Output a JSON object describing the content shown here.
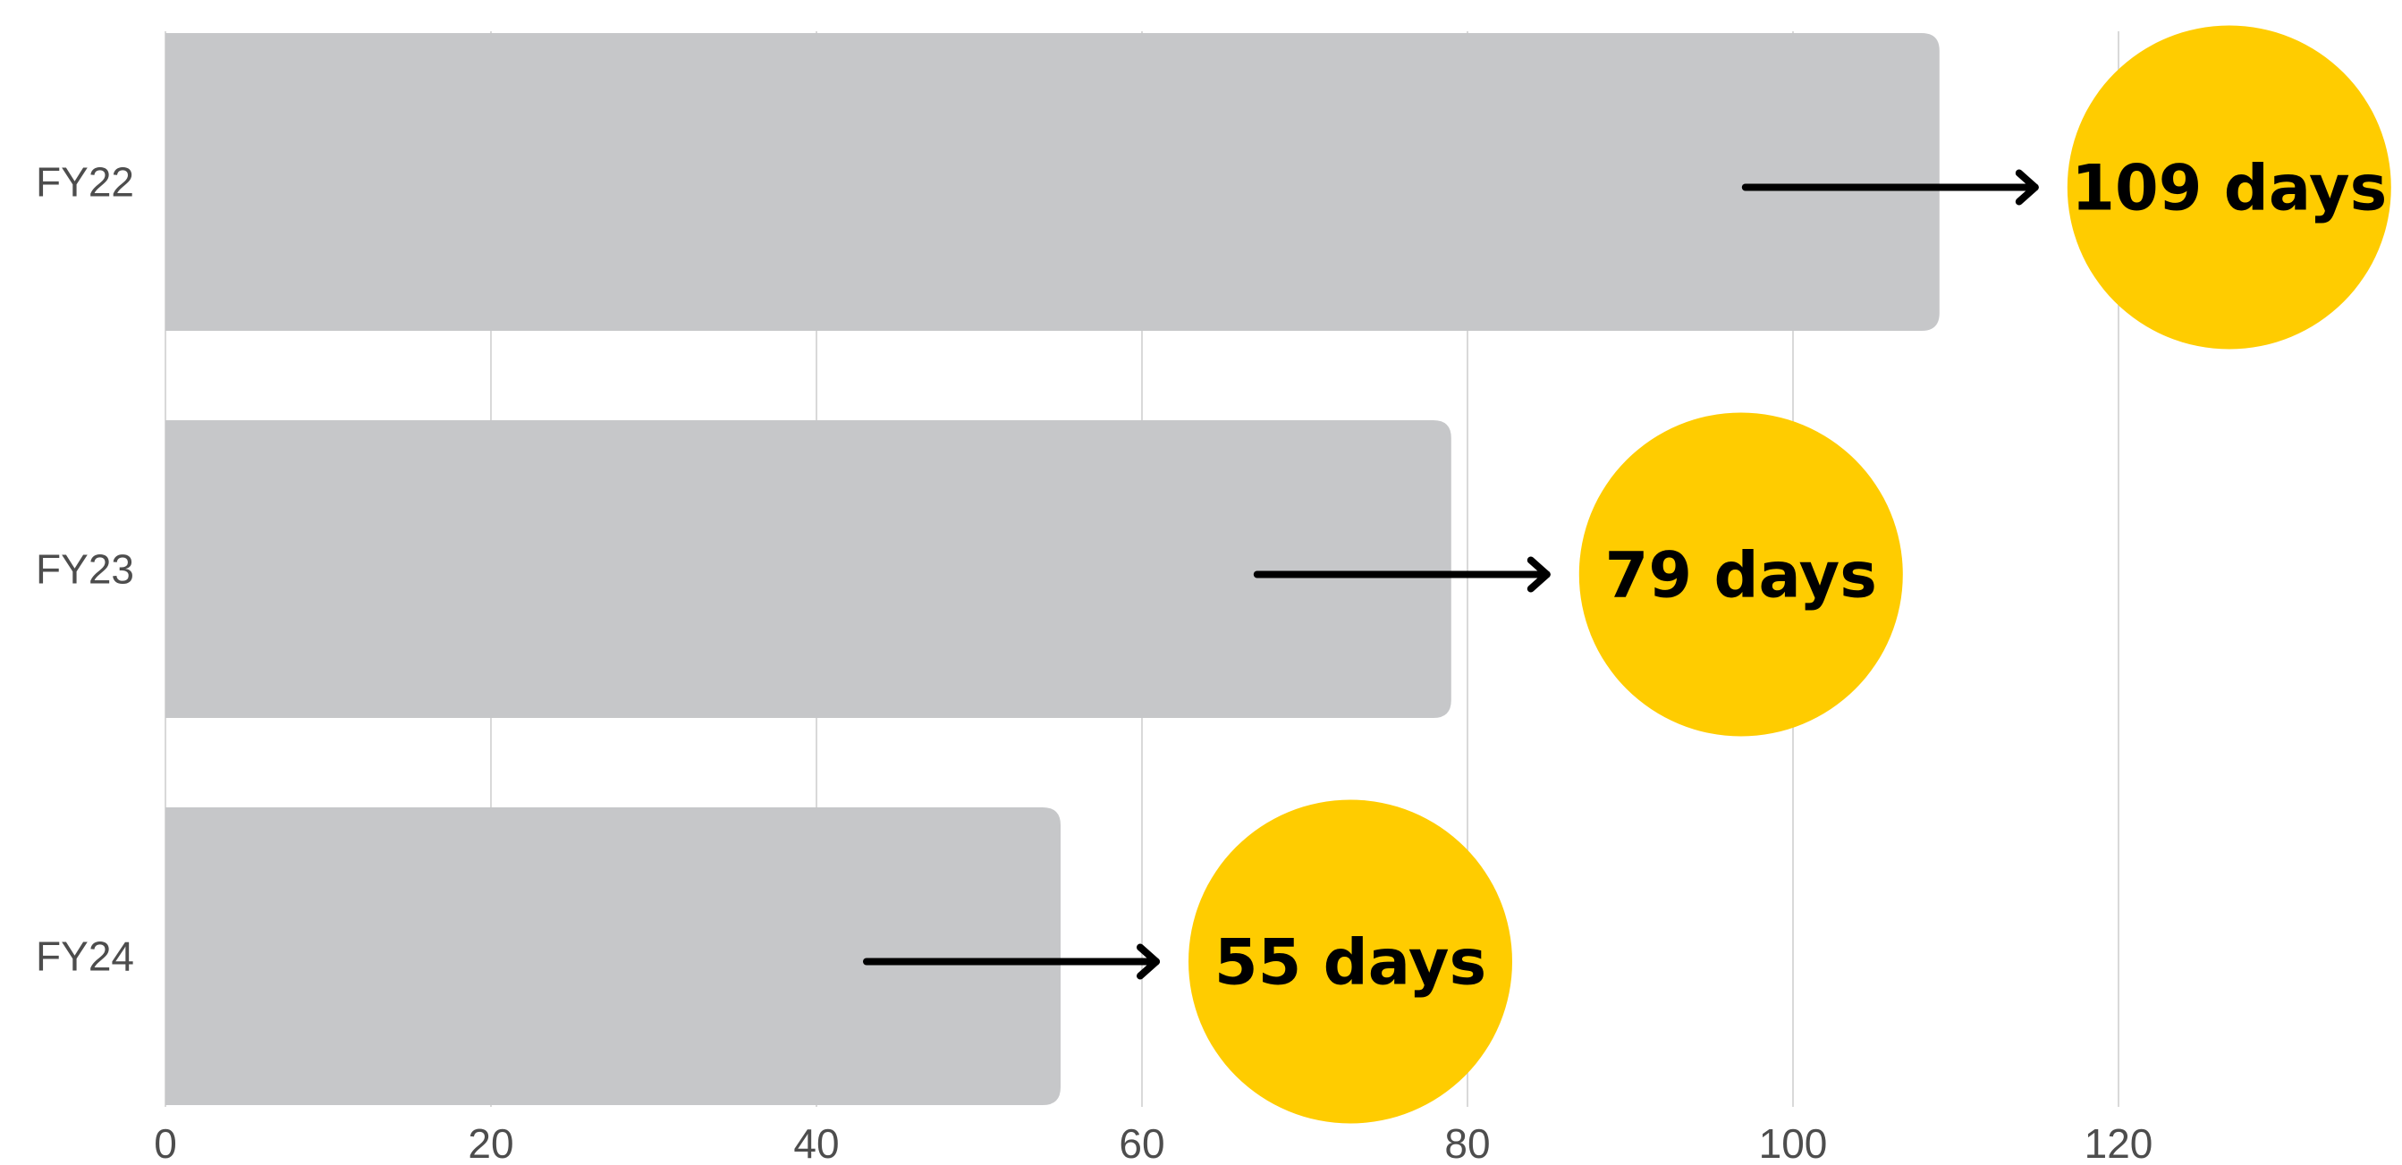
{
  "chart_data": {
    "type": "bar",
    "orientation": "horizontal",
    "categories": [
      "FY22",
      "FY23",
      "FY24"
    ],
    "values": [
      109,
      79,
      55
    ],
    "value_labels": [
      "109 days",
      "79 days",
      "55 days"
    ],
    "xlim": [
      0,
      138
    ],
    "xticks": [
      0,
      20,
      40,
      60,
      80,
      100,
      120
    ],
    "xtick_labels": [
      "0",
      "20",
      "40",
      "60",
      "80",
      "100",
      "120"
    ],
    "grid": "vertical",
    "legend": "none",
    "title": "",
    "xlabel": "",
    "ylabel": "",
    "colors": {
      "bar": "#c6c7c9",
      "badge": "#ffcc00",
      "arrow": "#000000",
      "grid": "#d9d9d9",
      "text": "#4d4d4d"
    }
  }
}
